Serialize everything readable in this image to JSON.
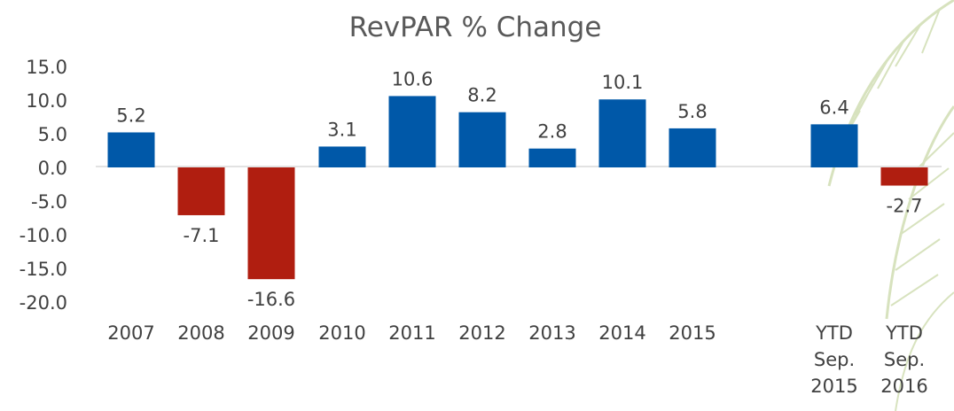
{
  "chart_data": {
    "type": "bar",
    "title": "RevPAR % Change",
    "xlabel": "",
    "ylabel": "",
    "ylim": [
      -20,
      15
    ],
    "yticks": [
      "15.0",
      "10.0",
      "5.0",
      "0.0",
      "-5.0",
      "-10.0",
      "-15.0",
      "-20.0"
    ],
    "grid": false,
    "legend": "none",
    "categories": [
      [
        "2007"
      ],
      [
        "2008"
      ],
      [
        "2009"
      ],
      [
        "2010"
      ],
      [
        "2011"
      ],
      [
        "2012"
      ],
      [
        "2013"
      ],
      [
        "2014"
      ],
      [
        "2015"
      ],
      [
        "YTD",
        "Sep.",
        "2015"
      ],
      [
        "YTD",
        "Sep.",
        "2016"
      ]
    ],
    "values": [
      5.2,
      -7.1,
      -16.6,
      3.1,
      10.6,
      8.2,
      2.8,
      10.1,
      5.8,
      6.4,
      -2.7
    ],
    "value_labels": [
      "5.2",
      "-7.1",
      "-16.6",
      "3.1",
      "10.6",
      "8.2",
      "2.8",
      "10.1",
      "5.8",
      "6.4",
      "-2.7"
    ],
    "colors": {
      "positive": "#0058a8",
      "negative": "#b01e10",
      "text": "#404040",
      "title": "#595959",
      "axis": "#d9d9d9",
      "palm": "#b8cc8a"
    }
  }
}
